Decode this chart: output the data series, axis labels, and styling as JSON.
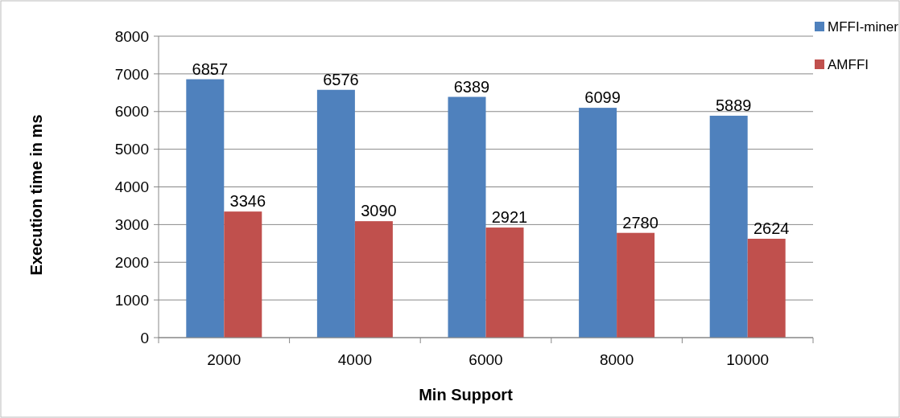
{
  "chart_data": {
    "type": "bar",
    "xlabel": "Min Support",
    "ylabel": "Execution time in ms",
    "categories": [
      "2000",
      "4000",
      "6000",
      "8000",
      "10000"
    ],
    "series": [
      {
        "name": "MFFI-miner",
        "color": "#4f81bd",
        "values": [
          6857,
          6576,
          6389,
          6099,
          5889
        ]
      },
      {
        "name": "AMFFI",
        "color": "#c0504d",
        "values": [
          3346,
          3090,
          2921,
          2780,
          2624
        ]
      }
    ],
    "ylim": [
      0,
      8000
    ],
    "yticks": [
      0,
      1000,
      2000,
      3000,
      4000,
      5000,
      6000,
      7000,
      8000
    ],
    "grid": "y",
    "legend": "top right",
    "data_labels": true
  }
}
